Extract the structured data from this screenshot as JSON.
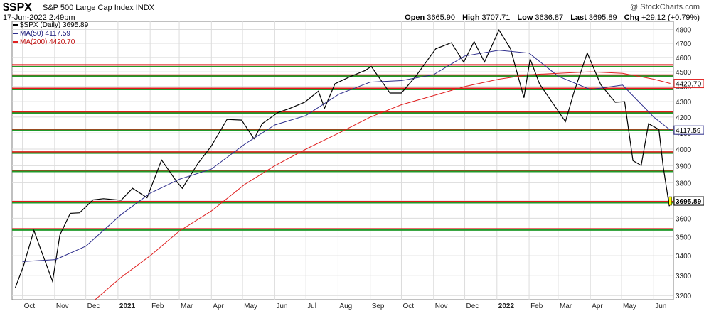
{
  "header": {
    "symbol": "$SPX",
    "name": "S&P 500 Large Cap Index",
    "exchange": "INDX",
    "timestamp": "17-Jun-2022 2:49pm",
    "watermark": "@ StockCharts.com",
    "open_label": "Open",
    "open": "3665.90",
    "high_label": "High",
    "high": "3707.71",
    "low_label": "Low",
    "low": "3636.87",
    "last_label": "Last",
    "last": "3695.89",
    "chg_label": "Chg",
    "chg": "+29.12 (+0.79%)"
  },
  "legend": {
    "price": "$SPX (Daily) 3695.89",
    "ma50": "MA(50) 4117.59",
    "ma200": "MA(200) 4420.70"
  },
  "colors": {
    "price": "#000000",
    "ma50": "#2d2d8c",
    "ma200": "#e02020",
    "level_red": "#e11b1b",
    "level_green": "#1f9a2a",
    "grid": "#dcdcdc",
    "last_highlight": "#ffff00"
  },
  "chart_data": {
    "type": "line",
    "title": "$SPX S&P 500 Large Cap Index INDX",
    "ylim": [
      3180,
      4860
    ],
    "yscale": "log",
    "y_ticks": [
      3200,
      3300,
      3400,
      3500,
      3600,
      3700,
      3800,
      3900,
      4000,
      4100,
      4200,
      4300,
      4400,
      4500,
      4600,
      4700,
      4800
    ],
    "x_ticks": [
      "Oct",
      "Nov",
      "Dec",
      "2021",
      "Feb",
      "Mar",
      "Apr",
      "May",
      "Jun",
      "Jul",
      "Aug",
      "Sep",
      "Oct",
      "Nov",
      "Dec",
      "2022",
      "Feb",
      "Mar",
      "Apr",
      "May",
      "Jun"
    ],
    "x_start": "2020-09-21",
    "x_end": "2022-06-20",
    "price_labels": [
      {
        "value": 4420.7,
        "text": "4420.70",
        "series": "MA(200)"
      },
      {
        "value": 4117.59,
        "text": "4117.59",
        "series": "MA(50)"
      },
      {
        "value": 3695.89,
        "text": "3695.89",
        "series": "$SPX"
      }
    ],
    "horizontal_levels": [
      {
        "y": 4545,
        "color": "red"
      },
      {
        "y": 4540,
        "color": "green"
      },
      {
        "y": 4475,
        "color": "red"
      },
      {
        "y": 4475,
        "color": "green"
      },
      {
        "y": 4385,
        "color": "red"
      },
      {
        "y": 4385,
        "color": "green"
      },
      {
        "y": 4230,
        "color": "red"
      },
      {
        "y": 4230,
        "color": "green"
      },
      {
        "y": 4120,
        "color": "red"
      },
      {
        "y": 4120,
        "color": "green"
      },
      {
        "y": 3980,
        "color": "red"
      },
      {
        "y": 3980,
        "color": "green"
      },
      {
        "y": 3870,
        "color": "red"
      },
      {
        "y": 3870,
        "color": "green"
      },
      {
        "y": 3690,
        "color": "red"
      },
      {
        "y": 3690,
        "color": "green"
      },
      {
        "y": 3540,
        "color": "red"
      },
      {
        "y": 3540,
        "color": "green"
      }
    ],
    "series": [
      {
        "name": "$SPX (Daily)",
        "x": [
          "2020-09-24",
          "2020-10-02",
          "2020-10-12",
          "2020-10-19",
          "2020-10-30",
          "2020-11-06",
          "2020-11-16",
          "2020-11-25",
          "2020-12-08",
          "2020-12-18",
          "2021-01-04",
          "2021-01-15",
          "2021-01-29",
          "2021-02-12",
          "2021-02-26",
          "2021-03-04",
          "2021-03-19",
          "2021-04-01",
          "2021-04-16",
          "2021-04-30",
          "2021-05-12",
          "2021-05-20",
          "2021-06-04",
          "2021-06-15",
          "2021-06-30",
          "2021-07-13",
          "2021-07-19",
          "2021-07-29",
          "2021-08-13",
          "2021-08-27",
          "2021-09-02",
          "2021-09-20",
          "2021-10-01",
          "2021-10-15",
          "2021-11-03",
          "2021-11-18",
          "2021-11-30",
          "2021-12-10",
          "2021-12-20",
          "2022-01-03",
          "2022-01-14",
          "2022-01-27",
          "2022-02-02",
          "2022-02-11",
          "2022-02-24",
          "2022-03-08",
          "2022-03-16",
          "2022-03-29",
          "2022-04-11",
          "2022-04-25",
          "2022-05-04",
          "2022-05-12",
          "2022-05-20",
          "2022-05-27",
          "2022-06-06",
          "2022-06-10",
          "2022-06-16",
          "2022-06-17"
        ],
        "values": [
          3237,
          3348,
          3534,
          3427,
          3270,
          3509,
          3627,
          3630,
          3702,
          3709,
          3700,
          3768,
          3714,
          3934,
          3811,
          3768,
          3913,
          4019,
          4185,
          4181,
          4063,
          4159,
          4229,
          4255,
          4297,
          4369,
          4258,
          4419,
          4468,
          4509,
          4537,
          4357,
          4357,
          4471,
          4660,
          4704,
          4567,
          4712,
          4568,
          4796,
          4662,
          4326,
          4589,
          4418,
          4288,
          4171,
          4357,
          4631,
          4413,
          4296,
          4300,
          3930,
          3901,
          4158,
          4121,
          3901,
          3667,
          3696
        ]
      },
      {
        "name": "MA(50)",
        "x": [
          "2020-10-01",
          "2020-11-02",
          "2020-12-01",
          "2021-01-04",
          "2021-02-01",
          "2021-03-01",
          "2021-04-01",
          "2021-05-03",
          "2021-06-01",
          "2021-07-01",
          "2021-08-02",
          "2021-09-01",
          "2021-10-01",
          "2021-11-01",
          "2021-12-01",
          "2022-01-03",
          "2022-02-01",
          "2022-03-01",
          "2022-04-01",
          "2022-05-02",
          "2022-06-01",
          "2022-06-17"
        ],
        "values": [
          3370,
          3380,
          3450,
          3620,
          3740,
          3820,
          3880,
          4030,
          4150,
          4210,
          4350,
          4430,
          4440,
          4480,
          4610,
          4650,
          4630,
          4470,
          4380,
          4410,
          4200,
          4118
        ]
      },
      {
        "name": "MA(200)",
        "x": [
          "2020-12-10",
          "2021-01-04",
          "2021-02-01",
          "2021-03-01",
          "2021-04-01",
          "2021-05-03",
          "2021-06-01",
          "2021-07-01",
          "2021-08-02",
          "2021-09-01",
          "2021-10-01",
          "2021-11-01",
          "2021-12-01",
          "2022-01-03",
          "2022-02-01",
          "2022-03-01",
          "2022-04-01",
          "2022-05-02",
          "2022-06-01",
          "2022-06-17"
        ],
        "values": [
          3180,
          3290,
          3400,
          3530,
          3640,
          3790,
          3900,
          4000,
          4100,
          4200,
          4280,
          4340,
          4400,
          4450,
          4480,
          4490,
          4500,
          4490,
          4450,
          4421
        ]
      }
    ]
  }
}
